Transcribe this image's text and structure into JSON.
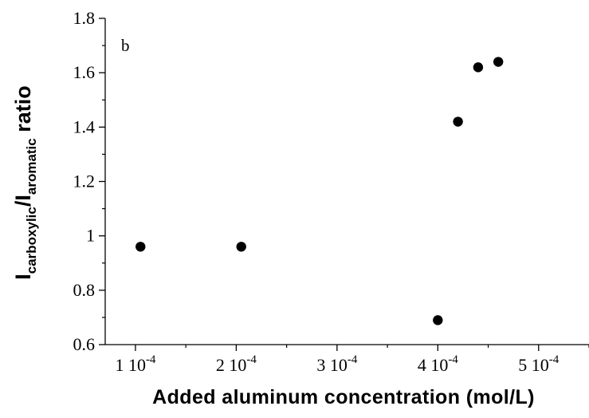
{
  "chart_data": {
    "type": "scatter",
    "panel_label": "b",
    "xlabel": "Added aluminum concentration (mol/L)",
    "ylabel": {
      "main": "I",
      "sub1": "carboxylic",
      "sep": "/I",
      "sub2": "aromatic",
      "suffix": " ratio"
    },
    "xlim": [
      7e-05,
      0.00055
    ],
    "ylim": [
      0.6,
      1.8
    ],
    "x_ticks": [
      {
        "value": 0.0001,
        "mantissa": "1 10",
        "exponent": "-4"
      },
      {
        "value": 0.0002,
        "mantissa": "2 10",
        "exponent": "-4"
      },
      {
        "value": 0.0003,
        "mantissa": "3 10",
        "exponent": "-4"
      },
      {
        "value": 0.0004,
        "mantissa": "4 10",
        "exponent": "-4"
      },
      {
        "value": 0.0005,
        "mantissa": "5 10",
        "exponent": "-4"
      }
    ],
    "y_ticks": [
      {
        "value": 0.6,
        "label": "0.6"
      },
      {
        "value": 0.8,
        "label": "0.8"
      },
      {
        "value": 1.0,
        "label": "1"
      },
      {
        "value": 1.2,
        "label": "1.2"
      },
      {
        "value": 1.4,
        "label": "1.4"
      },
      {
        "value": 1.6,
        "label": "1.6"
      },
      {
        "value": 1.8,
        "label": "1.8"
      }
    ],
    "points": [
      {
        "x": 0.000105,
        "y": 0.96
      },
      {
        "x": 0.000205,
        "y": 0.96
      },
      {
        "x": 0.0004,
        "y": 0.69
      },
      {
        "x": 0.00042,
        "y": 1.42
      },
      {
        "x": 0.00044,
        "y": 1.62
      },
      {
        "x": 0.00046,
        "y": 1.64
      }
    ],
    "grid": false,
    "legend": false,
    "marker_color": "#000000"
  }
}
